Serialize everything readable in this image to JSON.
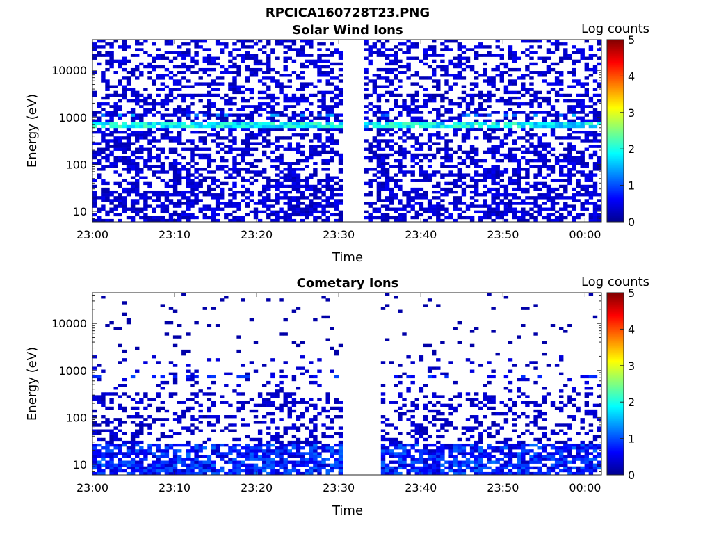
{
  "figure_title": "RPCICA160728T23.PNG",
  "chart_data": [
    {
      "type": "heatmap",
      "title": "Solar Wind Ions",
      "xlabel": "Time",
      "ylabel": "Energy (eV)",
      "x_ticks": [
        "23:00",
        "23:10",
        "23:20",
        "23:30",
        "23:40",
        "23:50",
        "00:00"
      ],
      "x_range": [
        "23:00",
        "00:02"
      ],
      "y_scale": "log",
      "y_ticks": [
        "10",
        "100",
        "1000",
        "10000"
      ],
      "y_range": [
        6,
        45000
      ],
      "data_gap": [
        "23:30",
        "23:33"
      ],
      "peak_energy_eV": 650,
      "secondary_energy_eV": 1050,
      "colorbar": {
        "label": "Log counts",
        "ticks": [
          "0",
          "1",
          "2",
          "3",
          "4",
          "5"
        ],
        "range": [
          0,
          5
        ],
        "colormap": "jet"
      },
      "grid": false
    },
    {
      "type": "heatmap",
      "title": "Cometary Ions",
      "xlabel": "Time",
      "ylabel": "Energy (eV)",
      "x_ticks": [
        "23:00",
        "23:10",
        "23:20",
        "23:30",
        "23:40",
        "23:50",
        "00:00"
      ],
      "x_range": [
        "23:00",
        "00:02"
      ],
      "y_scale": "log",
      "y_ticks": [
        "10",
        "100",
        "1000",
        "10000"
      ],
      "y_range": [
        6,
        45000
      ],
      "data_gap": [
        "23:30",
        "23:35"
      ],
      "peak_energy_eV": 10,
      "colorbar": {
        "label": "Log counts",
        "ticks": [
          "0",
          "1",
          "2",
          "3",
          "4",
          "5"
        ],
        "range": [
          0,
          5
        ],
        "colormap": "jet"
      },
      "grid": false
    }
  ]
}
